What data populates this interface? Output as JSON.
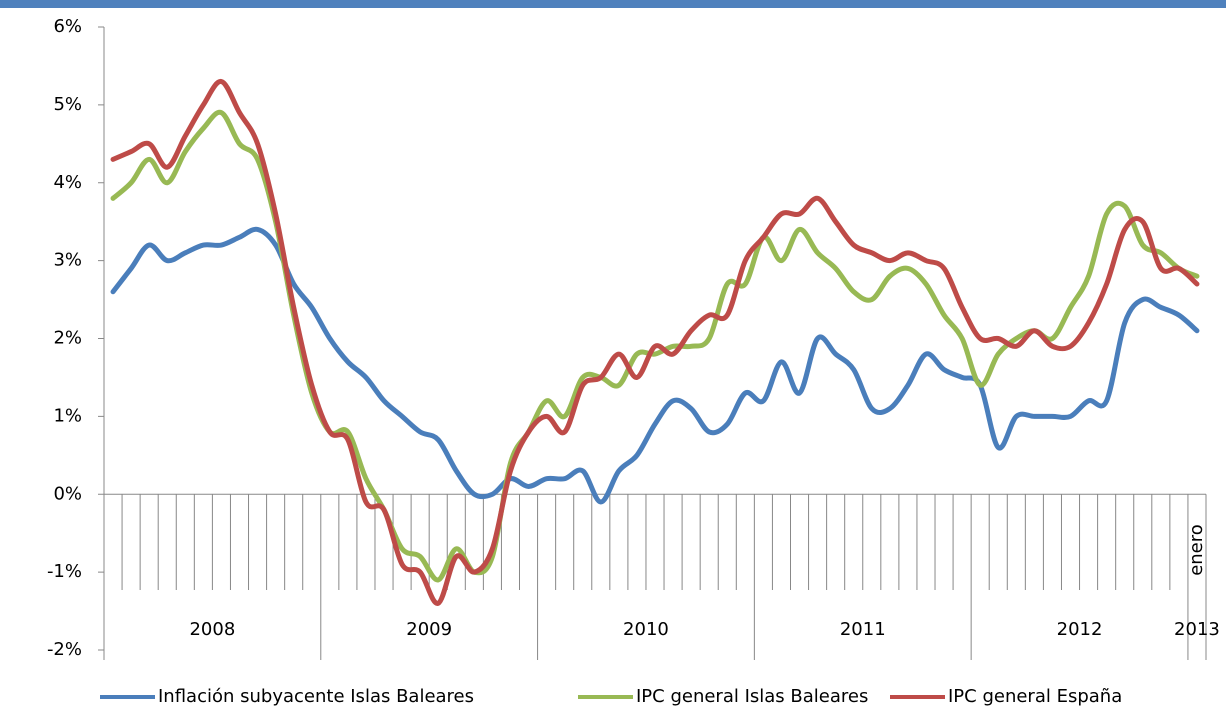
{
  "chart_data": {
    "type": "line",
    "categories": [
      null,
      null,
      null,
      null,
      null,
      null,
      null,
      null,
      null,
      null,
      null,
      null,
      null,
      null,
      null,
      null,
      null,
      null,
      null,
      null,
      null,
      null,
      null,
      null,
      null,
      null,
      null,
      null,
      null,
      null,
      null,
      null,
      null,
      null,
      null,
      null,
      null,
      null,
      null,
      null,
      null,
      null,
      null,
      null,
      null,
      null,
      null,
      null,
      null,
      null,
      null,
      null,
      null,
      null,
      null,
      null,
      null,
      null,
      null,
      null,
      "enero"
    ],
    "year_labels": [
      "2008",
      "2009",
      "2010",
      "2011",
      "2012",
      "2013"
    ],
    "year_spans": [
      12,
      12,
      12,
      12,
      12,
      1
    ],
    "series": [
      {
        "name": "Inflación subyacente Islas Baleares",
        "color": "#4a7ebb",
        "values": [
          2.6,
          2.9,
          3.2,
          3.0,
          3.1,
          3.2,
          3.2,
          3.3,
          3.4,
          3.2,
          2.7,
          2.4,
          2.0,
          1.7,
          1.5,
          1.2,
          1.0,
          0.8,
          0.7,
          0.3,
          0.0,
          0.0,
          0.2,
          0.1,
          0.2,
          0.2,
          0.3,
          -0.1,
          0.3,
          0.5,
          0.9,
          1.2,
          1.1,
          0.8,
          0.9,
          1.3,
          1.2,
          1.7,
          1.3,
          2.0,
          1.8,
          1.6,
          1.1,
          1.1,
          1.4,
          1.8,
          1.6,
          1.5,
          1.4,
          0.6,
          1.0,
          1.0,
          1.0,
          1.0,
          1.2,
          1.2,
          2.2,
          2.5,
          2.4,
          2.3,
          2.1
        ]
      },
      {
        "name": "IPC general Islas Baleares",
        "color": "#98b954",
        "values": [
          3.8,
          4.0,
          4.3,
          4.0,
          4.4,
          4.7,
          4.9,
          4.5,
          4.3,
          3.5,
          2.3,
          1.3,
          0.8,
          0.8,
          0.2,
          -0.2,
          -0.7,
          -0.8,
          -1.1,
          -0.7,
          -1.0,
          -0.8,
          0.4,
          0.8,
          1.2,
          1.0,
          1.5,
          1.5,
          1.4,
          1.8,
          1.8,
          1.9,
          1.9,
          2.0,
          2.7,
          2.7,
          3.3,
          3.0,
          3.4,
          3.1,
          2.9,
          2.6,
          2.5,
          2.8,
          2.9,
          2.7,
          2.3,
          2.0,
          1.4,
          1.8,
          2.0,
          2.1,
          2.0,
          2.4,
          2.8,
          3.6,
          3.7,
          3.2,
          3.1,
          2.9,
          2.8
        ]
      },
      {
        "name": "IPC general España",
        "color": "#be4b48",
        "values": [
          4.3,
          4.4,
          4.5,
          4.2,
          4.6,
          5.0,
          5.3,
          4.9,
          4.5,
          3.6,
          2.4,
          1.4,
          0.8,
          0.7,
          -0.1,
          -0.2,
          -0.9,
          -1.0,
          -1.4,
          -0.8,
          -1.0,
          -0.7,
          0.3,
          0.8,
          1.0,
          0.8,
          1.4,
          1.5,
          1.8,
          1.5,
          1.9,
          1.8,
          2.1,
          2.3,
          2.3,
          3.0,
          3.3,
          3.6,
          3.6,
          3.8,
          3.5,
          3.2,
          3.1,
          3.0,
          3.1,
          3.0,
          2.9,
          2.4,
          2.0,
          2.0,
          1.9,
          2.1,
          1.9,
          1.9,
          2.2,
          2.7,
          3.4,
          3.5,
          2.9,
          2.9,
          2.7
        ]
      }
    ],
    "ylim": [
      -2,
      6
    ],
    "yticks": [
      {
        "value": -2,
        "label": "-2%"
      },
      {
        "value": -1,
        "label": "-1%"
      },
      {
        "value": 0,
        "label": "0%"
      },
      {
        "value": 1,
        "label": "1%"
      },
      {
        "value": 2,
        "label": "2%"
      },
      {
        "value": 3,
        "label": "3%"
      },
      {
        "value": 4,
        "label": "4%"
      },
      {
        "value": 5,
        "label": "5%"
      },
      {
        "value": 6,
        "label": "6%"
      }
    ],
    "legend": "bottom"
  }
}
